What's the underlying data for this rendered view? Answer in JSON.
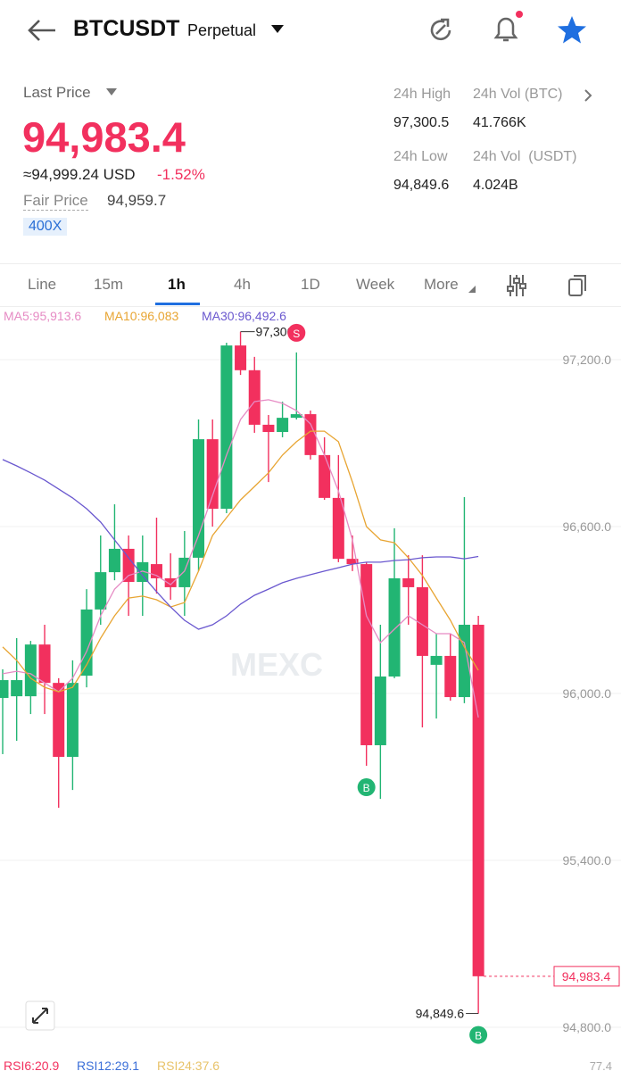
{
  "header": {
    "symbol": "BTCUSDT",
    "contract": "Perpetual"
  },
  "ticker": {
    "last_price_label": "Last Price",
    "last_price": "94,983.4",
    "usd_value": "≈94,999.24 USD",
    "change": "-1.52%",
    "fair_price_label": "Fair Price",
    "fair_price": "94,959.7",
    "leverage": "400X",
    "stats": [
      {
        "label": "24h High",
        "value": "97,300.5"
      },
      {
        "label": "24h Vol (BTC)",
        "value": "41.766K"
      },
      {
        "label": "24h Low",
        "value": "94,849.6"
      },
      {
        "label": "24h Vol  (USDT)",
        "value": "4.024B"
      }
    ]
  },
  "tabs": [
    "Line",
    "15m",
    "1h",
    "4h",
    "1D",
    "Week",
    "More"
  ],
  "chart_data": {
    "type": "candlestick",
    "watermark": "MEXC",
    "up_color": "#22b573",
    "down_color": "#f2305e",
    "open": [
      95984,
      95990,
      95990,
      96176,
      96038,
      95772,
      96064,
      96302,
      96436,
      96520,
      96401,
      96465,
      96414,
      96382,
      96488,
      96914,
      96664,
      97251,
      97162,
      96966,
      96940,
      96991,
      97004,
      96857,
      96703,
      96484,
      96465,
      95814,
      96061,
      96414,
      96382,
      96103,
      96135,
      95987,
      96247
    ],
    "close": [
      96048,
      96048,
      96176,
      96038,
      95772,
      96038,
      96302,
      96436,
      96520,
      96401,
      96472,
      96414,
      96382,
      96488,
      96914,
      96664,
      97251,
      97162,
      96966,
      96940,
      96991,
      97004,
      96857,
      96703,
      96484,
      96465,
      95814,
      96061,
      96414,
      96382,
      96135,
      96135,
      95987,
      96247,
      94983.4
    ],
    "high": [
      96087,
      96199,
      96189,
      96247,
      96055,
      96119,
      96375,
      96568,
      96680,
      96568,
      96568,
      96632,
      96504,
      96584,
      96985,
      96985,
      97261,
      97300.5,
      97210,
      97001,
      97049,
      97226,
      97017,
      96921,
      96857,
      96568,
      96472,
      96247,
      96594,
      96497,
      96497,
      96215,
      96215,
      96706,
      96279
    ],
    "low": [
      95782,
      95830,
      95926,
      95926,
      95589,
      95653,
      96022,
      96247,
      96407,
      96279,
      96279,
      96359,
      96337,
      96279,
      96440,
      96600,
      96648,
      97145,
      96937,
      96760,
      96921,
      96985,
      96841,
      96696,
      96472,
      96440,
      95740,
      95621,
      96055,
      96247,
      95878,
      95910,
      95974,
      95965,
      94849.6
    ],
    "series": [
      {
        "name": "MA5:95,913.6",
        "color": "#e68bc4",
        "values": [
          96071,
          96080,
          96071,
          96038,
          96006,
          96055,
          96151,
          96279,
          96375,
          96424,
          96440,
          96424,
          96391,
          96440,
          96568,
          96712,
          96857,
          96985,
          97049,
          97056,
          97043,
          97017,
          96969,
          96857,
          96728,
          96552,
          96279,
          96183,
          96231,
          96279,
          96247,
          96215,
          96215,
          96183,
          95913.6
        ]
      },
      {
        "name": "MA10:96,083",
        "color": "#e8a533",
        "values": [
          96167,
          96119,
          96055,
          96022,
          96006,
          96022,
          96103,
          96199,
          96279,
          96343,
          96350,
          96337,
          96311,
          96327,
          96440,
          96568,
          96632,
          96696,
          96744,
          96793,
          96857,
          96905,
          96943,
          96943,
          96905,
          96760,
          96600,
          96552,
          96542,
          96488,
          96424,
          96343,
          96263,
          96167,
          96083
        ]
      },
      {
        "name": "MA30:96,492.6",
        "color": "#6a58cf",
        "values": [
          96841,
          96818,
          96793,
          96767,
          96735,
          96703,
          96664,
          96616,
          96552,
          96488,
          96424,
          96366,
          96311,
          96263,
          96231,
          96247,
          96279,
          96321,
          96353,
          96375,
          96398,
          96414,
          96427,
          96440,
          96452,
          96465,
          96472,
          96472,
          96478,
          96481,
          96488,
          96491,
          96491,
          96484,
          96492.6
        ]
      }
    ],
    "ylim": [
      94691,
      97386
    ],
    "yticks": [
      {
        "value": 97200,
        "label": "97,200.0"
      },
      {
        "value": 96600,
        "label": "96,600.0"
      },
      {
        "value": 96000,
        "label": "96,000.0"
      },
      {
        "value": 95400,
        "label": "95,400.0"
      },
      {
        "value": 94800,
        "label": "94,800.0"
      }
    ],
    "grid": true,
    "high_label": "97,300.5",
    "low_label": "94,849.6",
    "price_tag": "94,983.4",
    "signals": [
      "S",
      "B",
      "B"
    ]
  },
  "footer": {
    "rsi": [
      {
        "label": "RSI6:20.9",
        "color": "#f2305e"
      },
      {
        "label": "RSI12:29.1",
        "color": "#3b6fd8"
      },
      {
        "label": "RSI24:37.6",
        "color": "#e8c36a"
      }
    ],
    "scale": "77.4"
  }
}
